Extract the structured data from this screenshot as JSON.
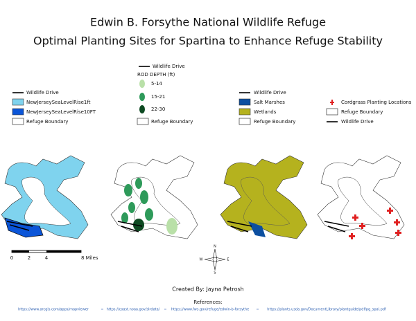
{
  "header": {
    "title": "Edwin B. Forsythe National Wildlife Refuge",
    "subtitle": "Optimal Planting Sites for Spartina to Enhance Refuge Stability"
  },
  "legends": [
    {
      "items": [
        "Wildlife Drive",
        "NewJerseySeaLevelRise1ft",
        "NewJerseySeaLevelRise10FT",
        "Refuge Boundary"
      ]
    },
    {
      "top": "Wildlife Drive",
      "title": "ROD DEPTH (ft)",
      "items": [
        "5-14",
        "15-21",
        "22-30",
        "Refuge Boundary"
      ]
    },
    {
      "items": [
        "Wildlife Drive",
        "Salt Marshes",
        "Wetlands",
        "Refuge Boundary"
      ]
    },
    {
      "items": [
        "Cordgrass Planting Locations",
        "Refuge Boundary",
        "Wildlife Drive"
      ]
    }
  ],
  "scale_bar": {
    "labels": [
      "0",
      "2",
      "4",
      "8 Miles"
    ]
  },
  "north_arrow": {
    "n": "N",
    "s": "S",
    "e": "E",
    "w": "W"
  },
  "credit": "Created By: Jayna Petrosh",
  "references": {
    "title": "References:",
    "links": [
      "https://www.arcgis.com/apps/mapviewer",
      "https://coast.noaa.gov/slrdata/",
      "https://www.fws.gov/refuge/edwin-b-forsythe",
      "https://plants.usda.gov/DocumentLibrary/plantguide/pdf/pg_spal.pdf"
    ]
  }
}
